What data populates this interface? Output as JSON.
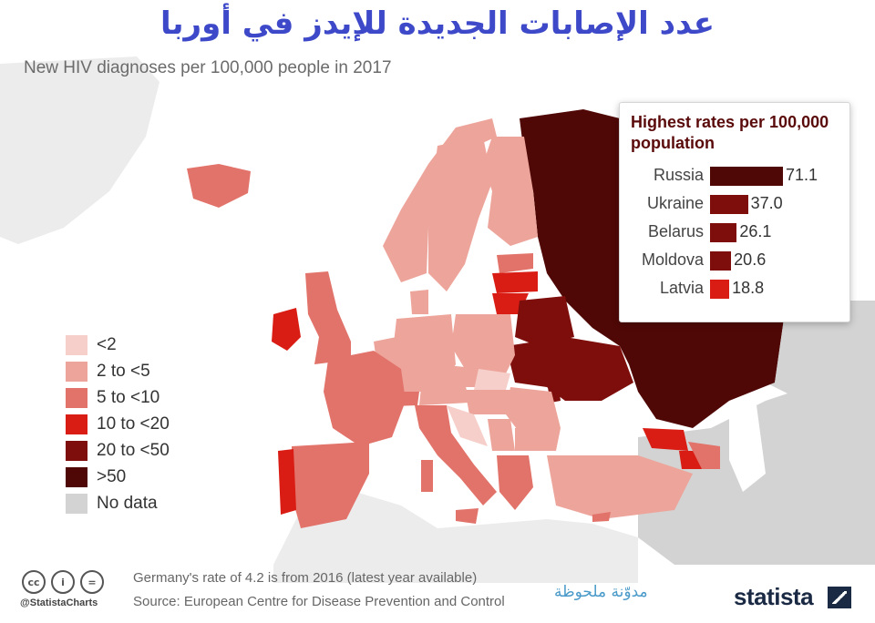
{
  "title": "عدد الإصابات الجديدة للإيدز في أوربا",
  "subtitle": "New HIV diagnoses per 100,000 people in 2017",
  "colors": {
    "c_lt2": "#f6cfca",
    "c_2to5": "#eda49a",
    "c_5to10": "#e2736a",
    "c_10to20": "#d91d14",
    "c_20to50": "#7d0e0b",
    "c_gt50": "#4f0806",
    "c_nodata": "#d3d3d3",
    "land_background": "#ececec",
    "brand": "#1b2a44",
    "title": "#3d49c8"
  },
  "legend": [
    {
      "label": "<2",
      "color": "#f6cfca"
    },
    {
      "label": "2 to <5",
      "color": "#eda49a"
    },
    {
      "label": "5 to <10",
      "color": "#e2736a"
    },
    {
      "label": "10 to <20",
      "color": "#d91d14"
    },
    {
      "label": "20 to <50",
      "color": "#7d0e0b"
    },
    {
      "label": ">50",
      "color": "#4f0806"
    },
    {
      "label": "No data",
      "color": "#d3d3d3"
    }
  ],
  "top_rates": {
    "title": "Highest rates per 100,000 population",
    "items": [
      {
        "country": "Russia",
        "value": "71.1",
        "num": 71.1,
        "color": "#4f0806"
      },
      {
        "country": "Ukraine",
        "value": "37.0",
        "num": 37.0,
        "color": "#7d0e0b"
      },
      {
        "country": "Belarus",
        "value": "26.1",
        "num": 26.1,
        "color": "#7d0e0b"
      },
      {
        "country": "Moldova",
        "value": "20.6",
        "num": 20.6,
        "color": "#7d0e0b"
      },
      {
        "country": "Latvia",
        "value": "18.8",
        "num": 18.8,
        "color": "#d91d14"
      }
    ]
  },
  "footer": {
    "note": "Germany's rate of 4.2 is from 2016 (latest year available)",
    "source": "Source: European Centre for Disease Prevention and Control",
    "handle": "@StatistaCharts",
    "blog": "مدوّنة ملحوظة",
    "brand": "statista",
    "icons": [
      {
        "name": "cc-icon",
        "glyph": "cc"
      },
      {
        "name": "attribution-icon",
        "glyph": "i"
      },
      {
        "name": "no-derivatives-icon",
        "glyph": "="
      }
    ]
  }
}
